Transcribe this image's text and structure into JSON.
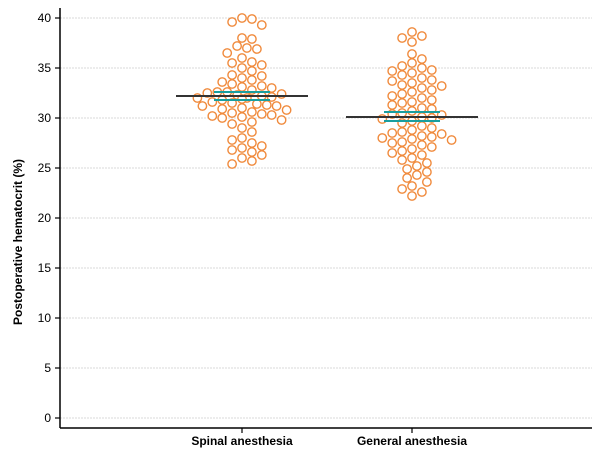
{
  "chart_data": {
    "type": "scatter",
    "ylabel": "Postoperative hematocrit (%)",
    "xlabel": "",
    "ylim": [
      0,
      40
    ],
    "yticks": [
      "0",
      "5",
      "10",
      "15",
      "20",
      "25",
      "30",
      "35",
      "40"
    ],
    "grid": true,
    "categories": [
      "Spinal anesthesia",
      "General anesthesia"
    ],
    "series": [
      {
        "name": "Spinal anesthesia",
        "mean": 32.2,
        "ci": [
          31.8,
          32.6
        ],
        "values": [
          40.0,
          39.9,
          39.6,
          39.3,
          38.0,
          37.9,
          37.2,
          37.0,
          36.9,
          36.5,
          36.0,
          35.6,
          35.5,
          35.3,
          35.0,
          34.7,
          34.3,
          34.2,
          34.0,
          33.8,
          33.6,
          33.4,
          33.2,
          33.1,
          33.0,
          32.8,
          32.6,
          32.6,
          32.5,
          32.4,
          32.3,
          32.2,
          32.1,
          32.0,
          32.0,
          31.9,
          31.8,
          31.6,
          31.5,
          31.4,
          31.3,
          31.2,
          31.2,
          31.0,
          30.9,
          30.8,
          30.6,
          30.5,
          30.4,
          30.3,
          30.2,
          30.1,
          30.0,
          29.8,
          29.6,
          29.4,
          29.0,
          28.6,
          28.0,
          27.8,
          27.5,
          27.2,
          27.0,
          26.8,
          26.6,
          26.3,
          26.0,
          25.7,
          25.4
        ]
      },
      {
        "name": "General anesthesia",
        "mean": 30.1,
        "ci": [
          29.7,
          30.6
        ],
        "values": [
          38.6,
          38.2,
          38.0,
          37.6,
          36.4,
          35.9,
          35.5,
          35.2,
          35.0,
          34.8,
          34.7,
          34.5,
          34.3,
          34.0,
          33.8,
          33.7,
          33.5,
          33.3,
          33.2,
          33.0,
          32.8,
          32.6,
          32.4,
          32.2,
          32.0,
          31.8,
          31.6,
          31.5,
          31.3,
          31.0,
          30.9,
          30.7,
          30.5,
          30.4,
          30.3,
          30.1,
          30.0,
          29.9,
          29.7,
          29.5,
          29.2,
          29.0,
          28.8,
          28.6,
          28.5,
          28.4,
          28.2,
          28.1,
          28.0,
          27.9,
          27.8,
          27.6,
          27.5,
          27.3,
          27.1,
          26.9,
          26.7,
          26.5,
          26.3,
          26.0,
          25.8,
          25.5,
          25.2,
          24.9,
          24.6,
          24.3,
          24.0,
          23.6,
          23.2,
          22.9,
          22.6,
          22.2
        ]
      }
    ],
    "colors": {
      "marker": "#f08a3c",
      "mean_line": "#333333",
      "ci_line": "#1a9e9e",
      "grid": "#d9d9d9",
      "axis": "#000000"
    }
  }
}
